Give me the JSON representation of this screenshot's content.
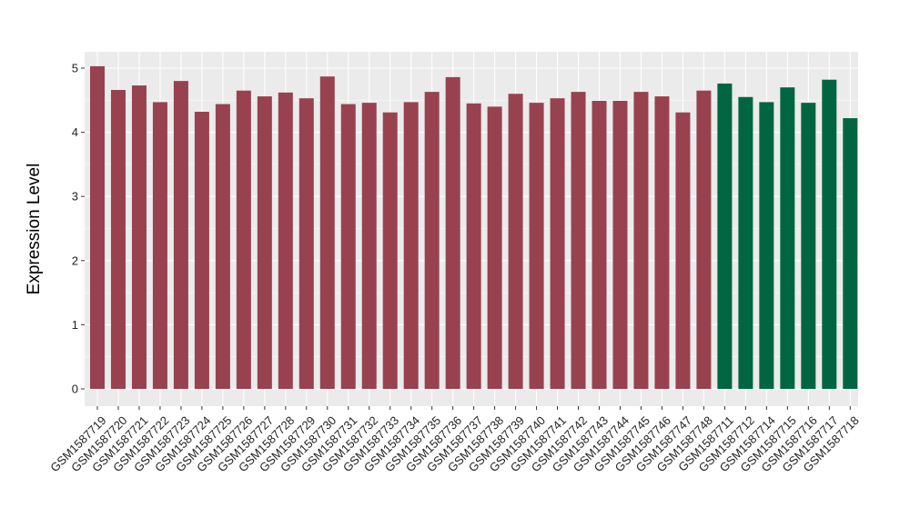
{
  "chart_data": {
    "type": "bar",
    "title": "",
    "xlabel": "",
    "ylabel": "Expression Level",
    "ylim": [
      0,
      5.25
    ],
    "yticks": [
      0,
      1,
      2,
      3,
      4,
      5
    ],
    "grid": true,
    "legend": "none",
    "categories": [
      "GSM1587719",
      "GSM1587720",
      "GSM1587721",
      "GSM1587722",
      "GSM1587723",
      "GSM1587724",
      "GSM1587725",
      "GSM1587726",
      "GSM1587727",
      "GSM1587728",
      "GSM1587729",
      "GSM1587730",
      "GSM1587731",
      "GSM1587732",
      "GSM1587733",
      "GSM1587734",
      "GSM1587735",
      "GSM1587736",
      "GSM1587737",
      "GSM1587738",
      "GSM1587739",
      "GSM1587740",
      "GSM1587741",
      "GSM1587742",
      "GSM1587743",
      "GSM1587744",
      "GSM1587745",
      "GSM1587746",
      "GSM1587747",
      "GSM1587748",
      "GSM1587711",
      "GSM1587712",
      "GSM1587714",
      "GSM1587715",
      "GSM1587716",
      "GSM1587717",
      "GSM1587718"
    ],
    "values": [
      5.03,
      4.66,
      4.73,
      4.47,
      4.8,
      4.32,
      4.44,
      4.65,
      4.56,
      4.62,
      4.53,
      4.87,
      4.44,
      4.46,
      4.31,
      4.47,
      4.63,
      4.86,
      4.45,
      4.4,
      4.6,
      4.46,
      4.53,
      4.63,
      4.49,
      4.49,
      4.63,
      4.56,
      4.31,
      4.65,
      4.76,
      4.55,
      4.47,
      4.7,
      4.46,
      4.82,
      4.22
    ],
    "group_split_index": 30,
    "colors": {
      "group_a": "#98424f",
      "group_b": "#006641",
      "panel_background": "#ebebeb",
      "grid": "#ffffff"
    }
  }
}
